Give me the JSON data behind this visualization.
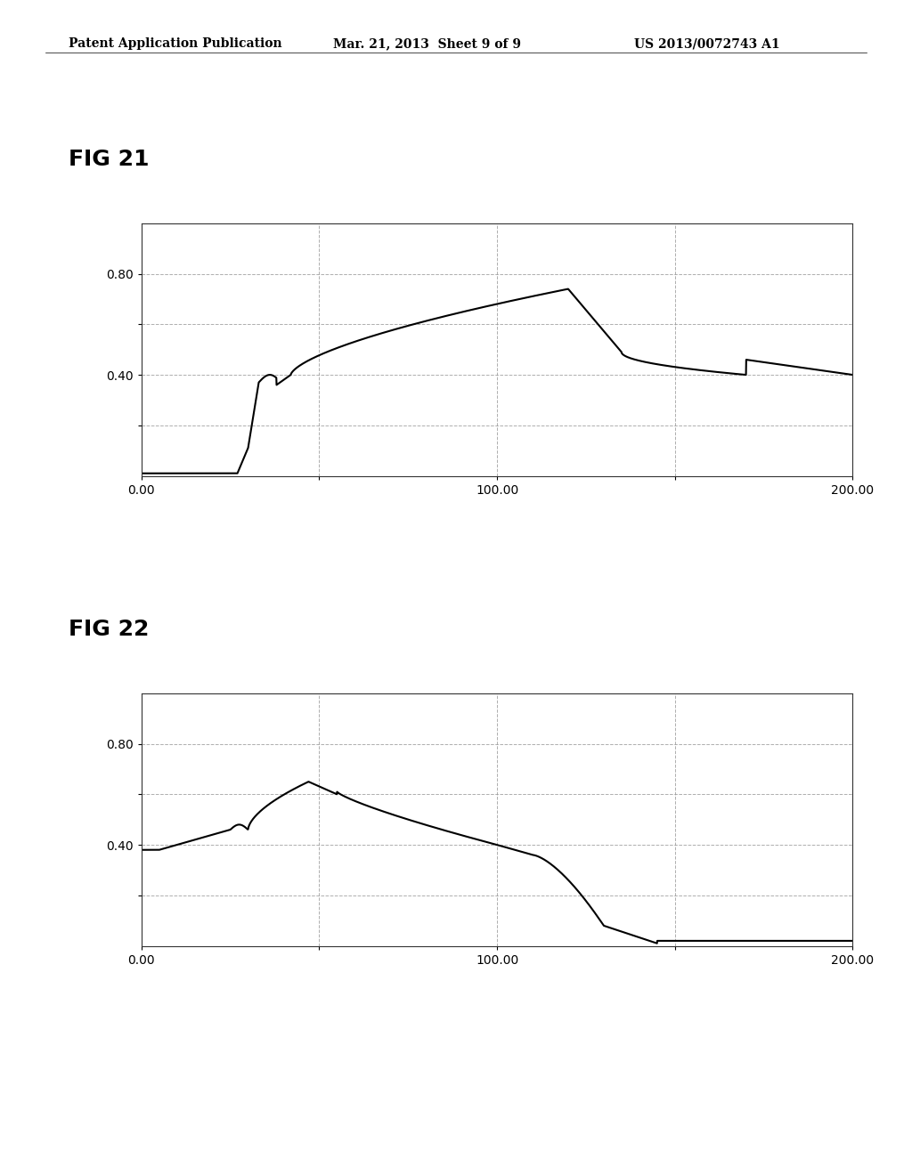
{
  "header_left": "Patent Application Publication",
  "header_mid": "Mar. 21, 2013  Sheet 9 of 9",
  "header_right": "US 2013/0072743 A1",
  "fig21_label": "FIG 21",
  "fig22_label": "FIG 22",
  "xlim": [
    0,
    200
  ],
  "ylim": [
    0,
    1.0
  ],
  "xticks": [
    0.0,
    50.0,
    100.0,
    150.0,
    200.0
  ],
  "xtick_labels": [
    "0.00",
    "",
    "100.00",
    "",
    "200.00"
  ],
  "yticks": [
    0.2,
    0.4,
    0.6,
    0.8
  ],
  "ytick_labels": [
    "",
    "0.40",
    "",
    "0.80"
  ],
  "grid_color": "#999999",
  "line_color": "#000000",
  "background_color": "#ffffff",
  "fig_label_fontsize": 18,
  "tick_fontsize": 10,
  "header_fontsize": 10
}
